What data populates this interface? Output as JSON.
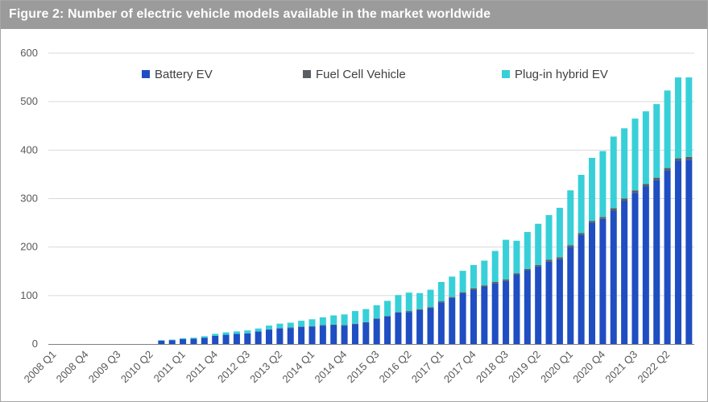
{
  "figure_title": "Figure 2: Number of electric vehicle models available in the market worldwide",
  "colors": {
    "battery_ev": "#1f4ec2",
    "fuel_cell": "#595e63",
    "plugin_hybrid": "#38d0d8",
    "title_bar": "#9b9b9b"
  },
  "chart_data": {
    "type": "bar",
    "stacked": true,
    "title": "Figure 2: Number of electric vehicle models available in the market worldwide",
    "xlabel": "",
    "ylabel": "",
    "ylim": [
      0,
      600
    ],
    "yticks": [
      0,
      100,
      200,
      300,
      400,
      500,
      600
    ],
    "grid": true,
    "legend_position": "top",
    "categories": [
      "2008 Q1",
      "2008 Q2",
      "2008 Q3",
      "2008 Q4",
      "2009 Q1",
      "2009 Q2",
      "2009 Q3",
      "2009 Q4",
      "2010 Q1",
      "2010 Q2",
      "2010 Q3",
      "2010 Q4",
      "2011 Q1",
      "2011 Q2",
      "2011 Q3",
      "2011 Q4",
      "2012 Q1",
      "2012 Q2",
      "2012 Q3",
      "2012 Q4",
      "2013 Q1",
      "2013 Q2",
      "2013 Q3",
      "2013 Q4",
      "2014 Q1",
      "2014 Q2",
      "2014 Q3",
      "2014 Q4",
      "2015 Q1",
      "2015 Q2",
      "2015 Q3",
      "2015 Q4",
      "2016 Q1",
      "2016 Q2",
      "2016 Q3",
      "2016 Q4",
      "2017 Q1",
      "2017 Q2",
      "2017 Q3",
      "2017 Q4",
      "2018 Q1",
      "2018 Q2",
      "2018 Q3",
      "2018 Q4",
      "2019 Q1",
      "2019 Q2",
      "2019 Q3",
      "2019 Q4",
      "2020 Q1",
      "2020 Q2",
      "2020 Q3",
      "2020 Q4",
      "2021 Q1",
      "2021 Q2",
      "2021 Q3",
      "2021 Q4",
      "2022 Q1",
      "2022 Q2",
      "2022 Q3",
      "2022 Q4"
    ],
    "tick_labels": [
      "2008 Q1",
      "2008 Q4",
      "2009 Q3",
      "2010 Q2",
      "2011 Q1",
      "2011 Q4",
      "2012 Q3",
      "2013 Q2",
      "2014 Q1",
      "2014 Q4",
      "2015 Q3",
      "2016 Q2",
      "2017 Q1",
      "2017 Q4",
      "2018 Q3",
      "2019 Q2",
      "2020 Q1",
      "2020 Q4",
      "2021 Q3",
      "2022 Q2"
    ],
    "series": [
      {
        "name": "Battery EV",
        "values": [
          0,
          0,
          0,
          0,
          0,
          0,
          0,
          0,
          0,
          0,
          7,
          8,
          10,
          11,
          13,
          17,
          19,
          21,
          22,
          26,
          29,
          32,
          33,
          35,
          36,
          38,
          39,
          38,
          41,
          44,
          52,
          57,
          65,
          66,
          70,
          74,
          86,
          95,
          105,
          112,
          118,
          125,
          130,
          143,
          152,
          160,
          170,
          175,
          200,
          225,
          250,
          258,
          275,
          295,
          312,
          325,
          338,
          358,
          378,
          380
        ]
      },
      {
        "name": "Fuel Cell Vehicle",
        "values": [
          0,
          0,
          0,
          0,
          0,
          0,
          0,
          0,
          0,
          0,
          0,
          0,
          0,
          0,
          0,
          0,
          0,
          0,
          0,
          0,
          1,
          1,
          1,
          1,
          1,
          1,
          1,
          1,
          1,
          1,
          1,
          1,
          1,
          2,
          2,
          2,
          2,
          2,
          2,
          3,
          3,
          3,
          3,
          3,
          3,
          3,
          4,
          4,
          4,
          4,
          4,
          4,
          5,
          5,
          5,
          5,
          5,
          5,
          5,
          6
        ]
      },
      {
        "name": "Plug-in hybrid EV",
        "values": [
          0,
          0,
          0,
          0,
          0,
          0,
          0,
          0,
          0,
          0,
          1,
          1,
          2,
          2,
          3,
          4,
          5,
          5,
          6,
          6,
          8,
          9,
          10,
          12,
          14,
          16,
          19,
          22,
          26,
          27,
          27,
          31,
          35,
          38,
          33,
          36,
          40,
          42,
          44,
          48,
          51,
          64,
          82,
          67,
          76,
          85,
          92,
          102,
          113,
          120,
          130,
          136,
          148,
          145,
          148,
          150,
          152,
          160,
          167,
          164
        ]
      }
    ]
  },
  "legend": {
    "items": [
      {
        "label": "Battery EV"
      },
      {
        "label": "Fuel Cell Vehicle"
      },
      {
        "label": "Plug-in hybrid EV"
      }
    ]
  }
}
